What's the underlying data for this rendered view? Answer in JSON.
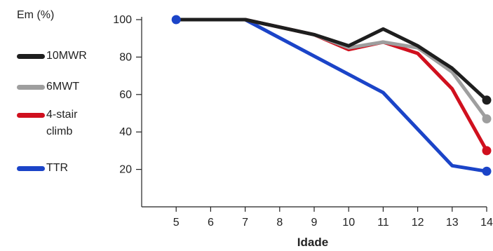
{
  "chart_data": {
    "type": "line",
    "unit_label": "Em (%)",
    "xlabel": "Idade",
    "ylabel": "",
    "x": [
      5,
      6,
      7,
      8,
      9,
      10,
      11,
      12,
      13,
      14
    ],
    "xlim": [
      4,
      14
    ],
    "ylim": [
      0,
      100
    ],
    "yticks": [
      20,
      40,
      60,
      80,
      100
    ],
    "grid": false,
    "legend_position": "left",
    "series": [
      {
        "name": "10MWR",
        "color": "#1e1e1e",
        "values": [
          100,
          100,
          100,
          96,
          92,
          86,
          95,
          86,
          74,
          57
        ]
      },
      {
        "name": "6MWT",
        "color": "#9e9e9e",
        "values": [
          100,
          100,
          100,
          96,
          92,
          85,
          88,
          85,
          72,
          47
        ]
      },
      {
        "name": "4-stair climb",
        "color": "#d0101e",
        "values": [
          100,
          100,
          100,
          96,
          92,
          84,
          88,
          82,
          63,
          30
        ]
      },
      {
        "name": "TTR",
        "color": "#1b44c8",
        "values": [
          100,
          100,
          100,
          null,
          null,
          null,
          61,
          null,
          22,
          19
        ]
      }
    ],
    "end_markers": true,
    "start_marker_series": "TTR"
  }
}
